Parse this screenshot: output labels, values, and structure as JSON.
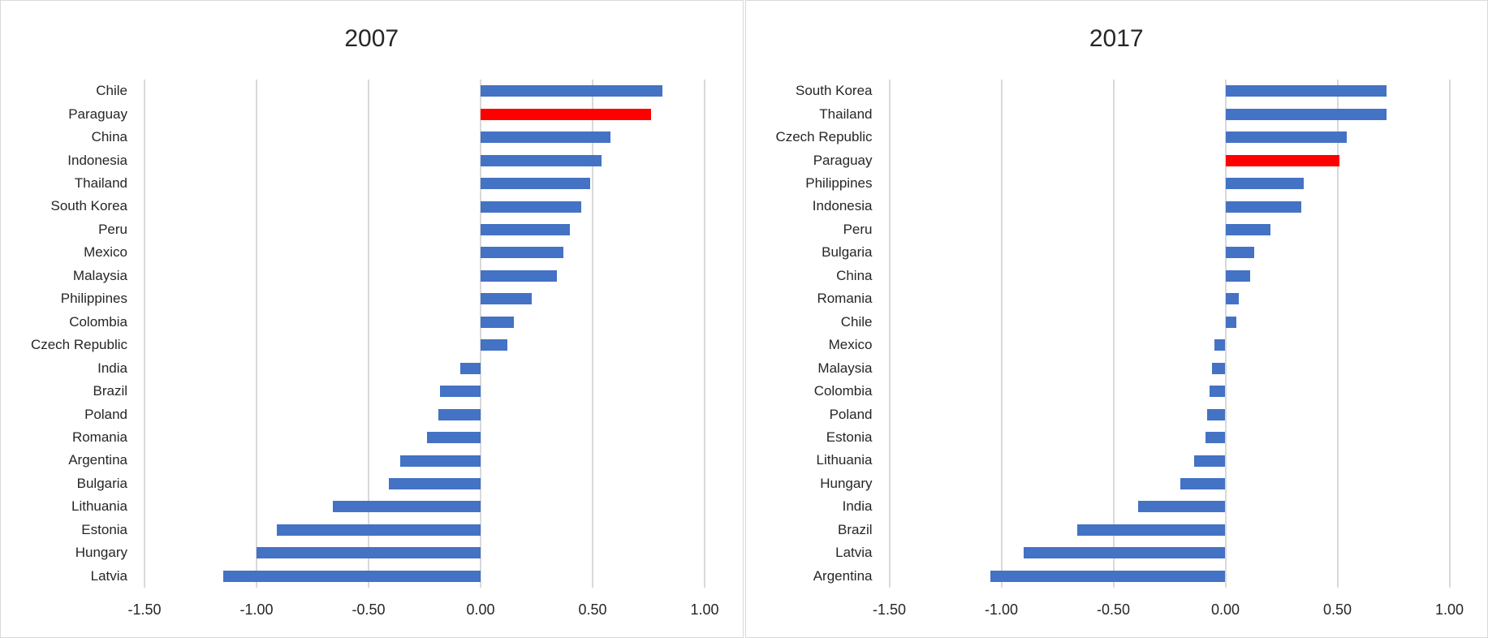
{
  "styles": {
    "background_color": "#ffffff",
    "panel_border_color": "#d9d9d9",
    "grid_color": "#d9d9d9",
    "text_color": "#262626",
    "title_color": "#262626",
    "bar_color": "#4472c4",
    "highlight_color": "#ff0000"
  },
  "chart_data": [
    {
      "type": "bar",
      "orientation": "horizontal",
      "title": "2007",
      "categories": [
        "Chile",
        "Paraguay",
        "China",
        "Indonesia",
        "Thailand",
        "South Korea",
        "Peru",
        "Mexico",
        "Malaysia",
        "Philippines",
        "Colombia",
        "Czech Republic",
        "India",
        "Brazil",
        "Poland",
        "Romania",
        "Argentina",
        "Bulgaria",
        "Lithuania",
        "Estonia",
        "Hungary",
        "Latvia"
      ],
      "values": [
        0.81,
        0.76,
        0.58,
        0.54,
        0.49,
        0.45,
        0.4,
        0.37,
        0.34,
        0.23,
        0.15,
        0.12,
        -0.09,
        -0.18,
        -0.19,
        -0.24,
        -0.36,
        -0.41,
        -0.66,
        -0.91,
        -1.0,
        -1.15
      ],
      "highlight_category": "Paraguay",
      "bar_color": "#4472c4",
      "highlight_color": "#ff0000",
      "xlim": [
        -1.5,
        1.0
      ],
      "x_ticks": [
        -1.5,
        -1.0,
        -0.5,
        0.0,
        0.5,
        1.0
      ],
      "x_tick_labels": [
        "-1.50",
        "-1.00",
        "-0.50",
        "0.00",
        "0.50",
        "1.00"
      ],
      "grid": "vertical-only",
      "legend": false
    },
    {
      "type": "bar",
      "orientation": "horizontal",
      "title": "2017",
      "categories": [
        "South Korea",
        "Thailand",
        "Czech Republic",
        "Paraguay",
        "Philippines",
        "Indonesia",
        "Peru",
        "Bulgaria",
        "China",
        "Romania",
        "Chile",
        "Mexico",
        "Malaysia",
        "Colombia",
        "Poland",
        "Estonia",
        "Lithuania",
        "Hungary",
        "India",
        "Brazil",
        "Latvia",
        "Argentina"
      ],
      "values": [
        0.72,
        0.72,
        0.54,
        0.51,
        0.35,
        0.34,
        0.2,
        0.13,
        0.11,
        0.06,
        0.05,
        -0.05,
        -0.06,
        -0.07,
        -0.08,
        -0.09,
        -0.14,
        -0.2,
        -0.39,
        -0.66,
        -0.9,
        -1.05
      ],
      "highlight_category": "Paraguay",
      "bar_color": "#4472c4",
      "highlight_color": "#ff0000",
      "xlim": [
        -1.5,
        1.0
      ],
      "x_ticks": [
        -1.5,
        -1.0,
        -0.5,
        0.0,
        0.5,
        1.0
      ],
      "x_tick_labels": [
        "-1.50",
        "-1.00",
        "-0.50",
        "0.00",
        "0.50",
        "1.00"
      ],
      "grid": "vertical-only",
      "legend": false
    }
  ]
}
